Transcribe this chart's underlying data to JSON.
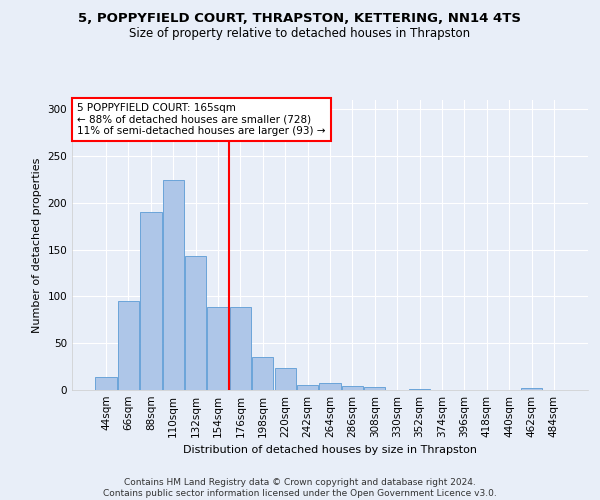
{
  "title_line1": "5, POPPYFIELD COURT, THRAPSTON, KETTERING, NN14 4TS",
  "title_line2": "Size of property relative to detached houses in Thrapston",
  "xlabel": "Distribution of detached houses by size in Thrapston",
  "ylabel": "Number of detached properties",
  "bins": [
    "44sqm",
    "66sqm",
    "88sqm",
    "110sqm",
    "132sqm",
    "154sqm",
    "176sqm",
    "198sqm",
    "220sqm",
    "242sqm",
    "264sqm",
    "286sqm",
    "308sqm",
    "330sqm",
    "352sqm",
    "374sqm",
    "396sqm",
    "418sqm",
    "440sqm",
    "462sqm",
    "484sqm"
  ],
  "bar_values": [
    14,
    95,
    190,
    225,
    143,
    89,
    89,
    35,
    23,
    5,
    7,
    4,
    3,
    0,
    1,
    0,
    0,
    0,
    0,
    2,
    0
  ],
  "bar_color": "#aec6e8",
  "bar_edge_color": "#5b9bd5",
  "vline_color": "red",
  "annotation_text": "5 POPPYFIELD COURT: 165sqm\n← 88% of detached houses are smaller (728)\n11% of semi-detached houses are larger (93) →",
  "annotation_box_color": "white",
  "annotation_box_edge": "red",
  "ylim": [
    0,
    310
  ],
  "yticks": [
    0,
    50,
    100,
    150,
    200,
    250,
    300
  ],
  "footer_line1": "Contains HM Land Registry data © Crown copyright and database right 2024.",
  "footer_line2": "Contains public sector information licensed under the Open Government Licence v3.0.",
  "bg_color": "#e8eef8",
  "grid_color": "#ffffff",
  "title_fontsize": 9.5,
  "subtitle_fontsize": 8.5,
  "ylabel_fontsize": 8,
  "xlabel_fontsize": 8,
  "tick_fontsize": 7.5,
  "annot_fontsize": 7.5,
  "footer_fontsize": 6.5
}
